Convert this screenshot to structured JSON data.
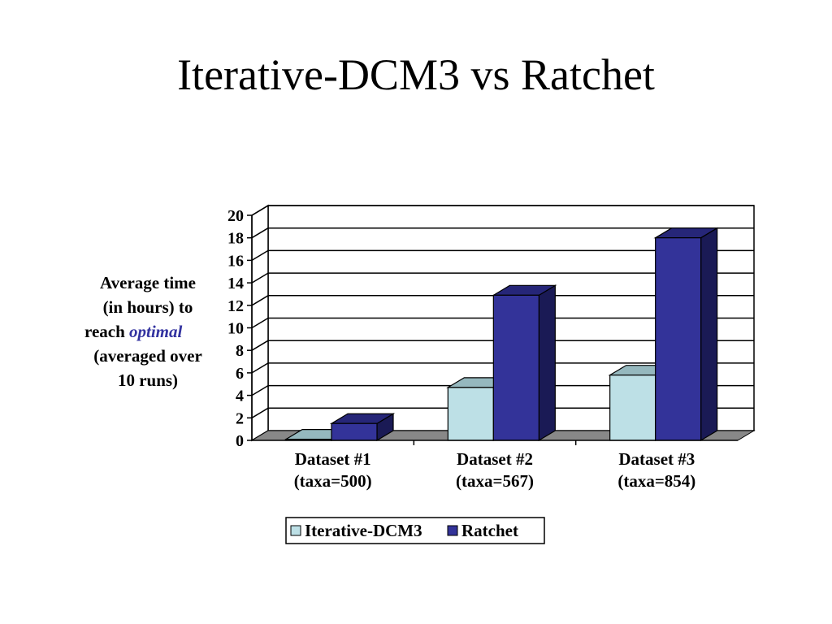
{
  "title": "Iterative-DCM3 vs Ratchet",
  "ylabel": {
    "line1": "Average time",
    "line2": "(in hours) to",
    "line3_prefix": "reach",
    "line3_emphasis": "optimal",
    "line4": "(averaged over",
    "line5": "10 runs)"
  },
  "chart_data": {
    "type": "bar",
    "style": "3d-clustered",
    "categories": [
      [
        "Dataset #1",
        "(taxa=500)"
      ],
      [
        "Dataset #2",
        "(taxa=567)"
      ],
      [
        "Dataset #3",
        "(taxa=854)"
      ]
    ],
    "series": [
      {
        "name": "Iterative-DCM3",
        "values": [
          0.1,
          4.7,
          5.8
        ],
        "color": "#bde0e6",
        "side": "#7aa0a6",
        "top": "#95b8be"
      },
      {
        "name": "Ratchet",
        "values": [
          1.5,
          12.9,
          18.0
        ],
        "color": "#333399",
        "side": "#1a1a55",
        "top": "#262678"
      }
    ],
    "yticks": [
      0,
      2,
      4,
      6,
      8,
      10,
      12,
      14,
      16,
      18,
      20
    ],
    "ylim": [
      0,
      20
    ],
    "grid": true,
    "legend_position": "bottom"
  }
}
